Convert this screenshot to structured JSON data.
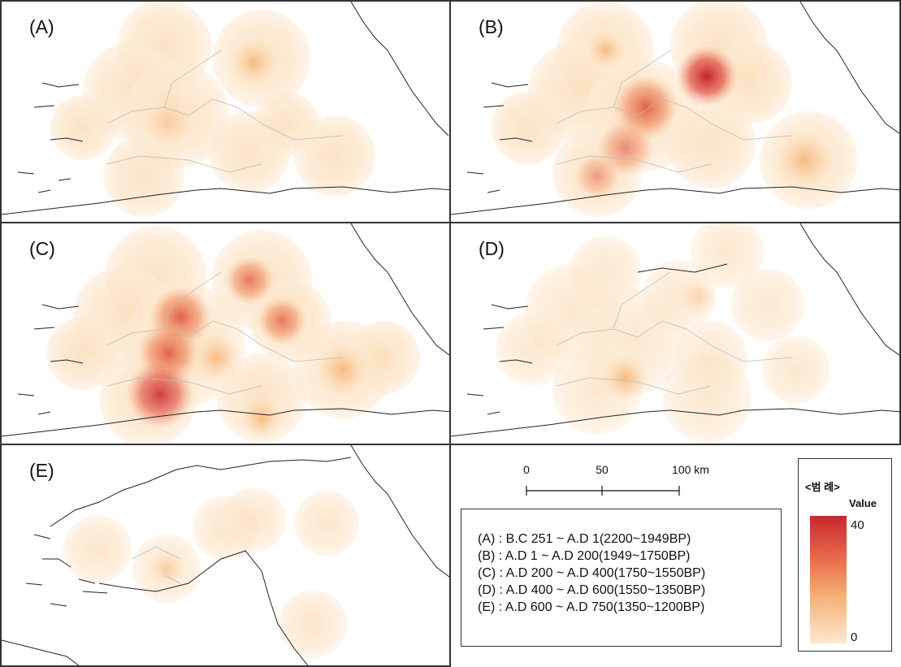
{
  "panels": [
    {
      "id": "A",
      "label": "(A)"
    },
    {
      "id": "B",
      "label": "(B)"
    },
    {
      "id": "C",
      "label": "(C)"
    },
    {
      "id": "D",
      "label": "(D)"
    },
    {
      "id": "E",
      "label": "(E)"
    }
  ],
  "scale_bar": {
    "ticks": [
      "0",
      "50",
      "100 km"
    ]
  },
  "periods": [
    "(A) : B.C 251 ~ A.D 1(2200~1949BP)",
    "(B) : A.D 1 ~ A.D 200(1949~1750BP)",
    "(C) : A.D 200 ~ A.D 400(1750~1550BP)",
    "(D) : A.D 400 ~ A.D 600(1550~1350BP)",
    "(E) : A.D 600 ~ A.D 750(1350~1200BP)"
  ],
  "legend": {
    "title": "<범 례>",
    "subtitle": "Value",
    "max_label": "40",
    "min_label": "0",
    "color_high": "#c8272d",
    "color_mid": "#f0a060",
    "color_low": "#fde8cf"
  }
}
